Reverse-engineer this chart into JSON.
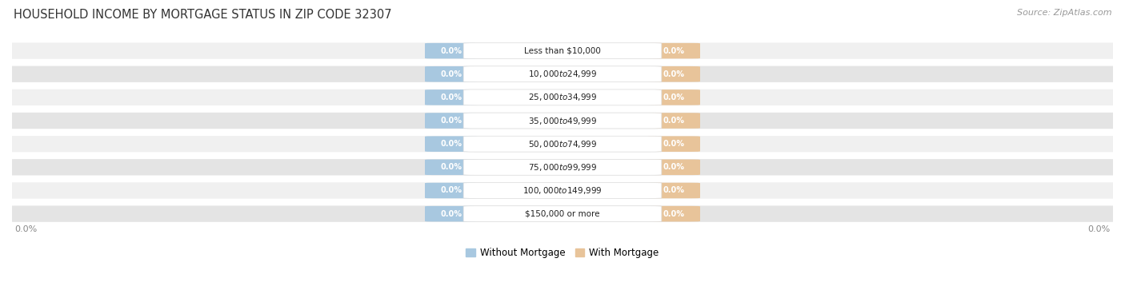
{
  "title": "HOUSEHOLD INCOME BY MORTGAGE STATUS IN ZIP CODE 32307",
  "source": "Source: ZipAtlas.com",
  "categories": [
    "Less than $10,000",
    "$10,000 to $24,999",
    "$25,000 to $34,999",
    "$35,000 to $49,999",
    "$50,000 to $74,999",
    "$75,000 to $99,999",
    "$100,000 to $149,999",
    "$150,000 or more"
  ],
  "without_mortgage": [
    0.0,
    0.0,
    0.0,
    0.0,
    0.0,
    0.0,
    0.0,
    0.0
  ],
  "with_mortgage": [
    0.0,
    0.0,
    0.0,
    0.0,
    0.0,
    0.0,
    0.0,
    0.0
  ],
  "without_color": "#A8C8E0",
  "with_color": "#E8C49A",
  "row_bg_light": "#F0F0F0",
  "row_bg_dark": "#E4E4E4",
  "label_color": "#222222",
  "value_color": "#FFFFFF",
  "title_fontsize": 10.5,
  "source_fontsize": 8,
  "legend_label_without": "Without Mortgage",
  "legend_label_with": "With Mortgage",
  "axis_label_left": "0.0%",
  "axis_label_right": "0.0%"
}
